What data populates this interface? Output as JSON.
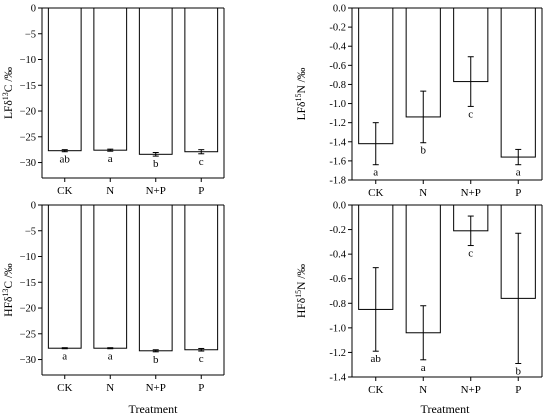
{
  "chart_data": [
    {
      "type": "bar",
      "panel": "top-left",
      "ylabel_prefix": "LFδ",
      "ylabel_sup": "13",
      "ylabel_suffix": "C /‰",
      "categories": [
        "CK",
        "N",
        "N+P",
        "P"
      ],
      "values": [
        -27.7,
        -27.6,
        -28.4,
        -27.9
      ],
      "errors": [
        0.2,
        0.2,
        0.35,
        0.4
      ],
      "significance": [
        "ab",
        "a",
        "b",
        "c"
      ],
      "ylim": [
        -33,
        0
      ],
      "yticks": [
        0,
        -5,
        -10,
        -15,
        -20,
        -25,
        -30
      ],
      "ytick_labels": [
        "0",
        "−5",
        "−10",
        "−15",
        "−20",
        "−25",
        "−30"
      ],
      "xlabel": ""
    },
    {
      "type": "bar",
      "panel": "top-right",
      "ylabel_prefix": "LFδ",
      "ylabel_sup": "15",
      "ylabel_suffix": "N /‰",
      "categories": [
        "CK",
        "N",
        "N+P",
        "P"
      ],
      "values": [
        -1.42,
        -1.14,
        -0.77,
        -1.56
      ],
      "errors": [
        0.22,
        0.27,
        0.26,
        0.08
      ],
      "significance": [
        "a",
        "b",
        "c",
        "a"
      ],
      "ylim": [
        -1.8,
        0
      ],
      "yticks": [
        0,
        -0.2,
        -0.4,
        -0.6,
        -0.8,
        -1.0,
        -1.2,
        -1.4,
        -1.6,
        -1.8
      ],
      "ytick_labels": [
        "0.0",
        "-0.2",
        "-0.4",
        "-0.6",
        "-0.8",
        "-1.0",
        "-1.2",
        "-1.4",
        "-1.6",
        "-1.8"
      ],
      "xlabel": ""
    },
    {
      "type": "bar",
      "panel": "bottom-left",
      "ylabel_prefix": "HFδ",
      "ylabel_sup": "13",
      "ylabel_suffix": "C /‰",
      "categories": [
        "CK",
        "N",
        "N+P",
        "P"
      ],
      "values": [
        -27.8,
        -27.8,
        -28.3,
        -28.1
      ],
      "errors": [
        0.1,
        0.1,
        0.2,
        0.25
      ],
      "significance": [
        "a",
        "a",
        "b",
        "c"
      ],
      "ylim": [
        -33,
        0
      ],
      "yticks": [
        0,
        -5,
        -10,
        -15,
        -20,
        -25,
        -30
      ],
      "ytick_labels": [
        "0",
        "−5",
        "−10",
        "−15",
        "−20",
        "−25",
        "−30"
      ],
      "xlabel": "Treatment"
    },
    {
      "type": "bar",
      "panel": "bottom-right",
      "ylabel_prefix": "HFδ",
      "ylabel_sup": "15",
      "ylabel_suffix": "N /‰",
      "categories": [
        "CK",
        "N",
        "N+P",
        "P"
      ],
      "values": [
        -0.85,
        -1.04,
        -0.21,
        -0.76
      ],
      "errors": [
        0.34,
        0.22,
        0.12,
        0.53
      ],
      "significance": [
        "ab",
        "a",
        "c",
        "b"
      ],
      "ylim": [
        -1.4,
        0
      ],
      "yticks": [
        0,
        -0.2,
        -0.4,
        -0.6,
        -0.8,
        -1.0,
        -1.2,
        -1.4
      ],
      "ytick_labels": [
        "0.0",
        "-0.2",
        "-0.4",
        "-0.6",
        "-0.8",
        "-1.0",
        "-1.2",
        "-1.4"
      ],
      "xlabel": "Treatment"
    }
  ]
}
